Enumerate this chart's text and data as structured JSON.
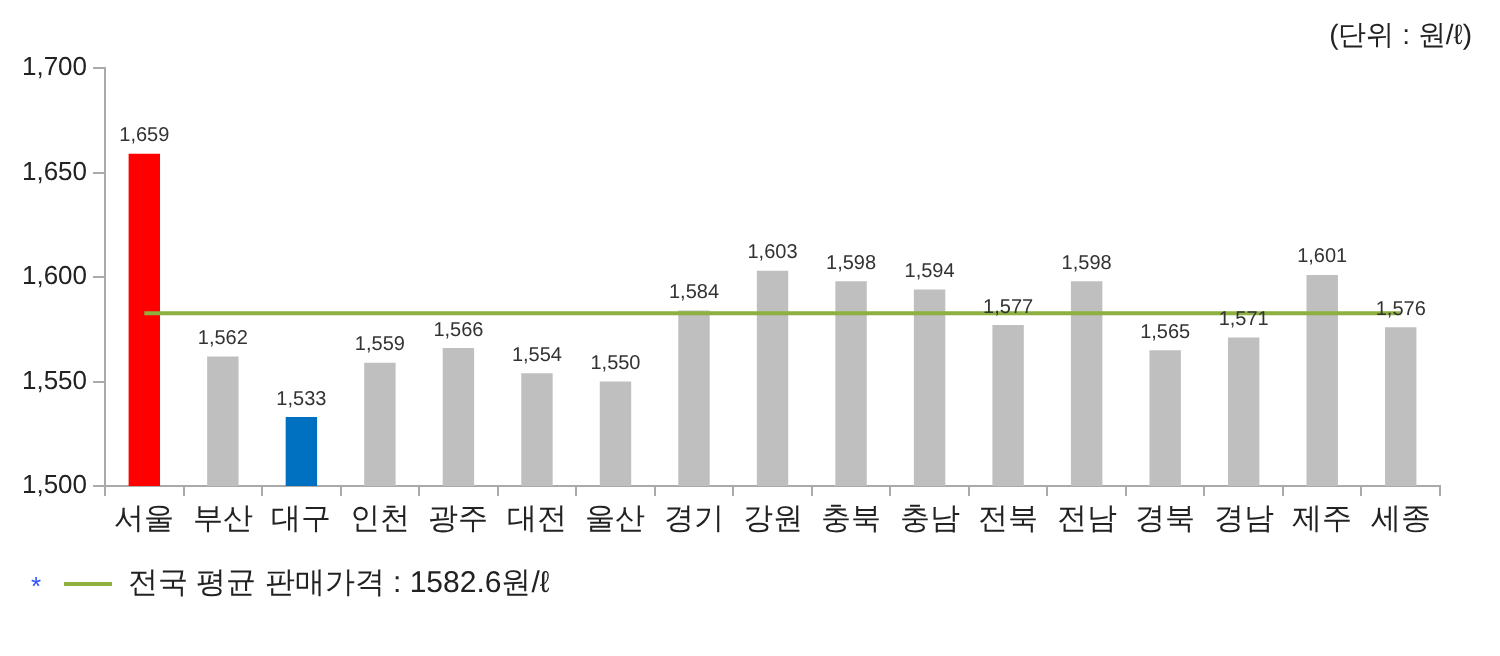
{
  "chart_data": {
    "type": "bar",
    "categories": [
      "서울",
      "부산",
      "대구",
      "인천",
      "광주",
      "대전",
      "울산",
      "경기",
      "강원",
      "충북",
      "충남",
      "전북",
      "전남",
      "경북",
      "경남",
      "제주",
      "세종"
    ],
    "values": [
      1659,
      1562,
      1533,
      1559,
      1566,
      1554,
      1550,
      1584,
      1603,
      1598,
      1594,
      1577,
      1598,
      1565,
      1571,
      1601,
      1576
    ],
    "value_labels": [
      "1,659",
      "1,562",
      "1,533",
      "1,559",
      "1,566",
      "1,554",
      "1,550",
      "1,584",
      "1,603",
      "1,598",
      "1,594",
      "1,577",
      "1,598",
      "1,565",
      "1,571",
      "1,601",
      "1,576"
    ],
    "colors": [
      "#ff0000",
      "#bfbfbf",
      "#0070c0",
      "#bfbfbf",
      "#bfbfbf",
      "#bfbfbf",
      "#bfbfbf",
      "#bfbfbf",
      "#bfbfbf",
      "#bfbfbf",
      "#bfbfbf",
      "#bfbfbf",
      "#bfbfbf",
      "#bfbfbf",
      "#bfbfbf",
      "#bfbfbf",
      "#bfbfbf"
    ],
    "ylim": [
      1500,
      1700
    ],
    "yticks": [
      {
        "value": 1500,
        "label": "1,500"
      },
      {
        "value": 1550,
        "label": "1,550"
      },
      {
        "value": 1600,
        "label": "1,600"
      },
      {
        "value": 1650,
        "label": "1,650"
      },
      {
        "value": 1700,
        "label": "1,700"
      }
    ],
    "grid": false,
    "ref_lines": [
      {
        "axis": "y",
        "value": 1582.6,
        "label": "전국 평균 판매가격 : 1582.6원/ℓ",
        "color": "#8db040"
      }
    ],
    "annotations": [
      "(단위 : 원/ℓ)",
      "*"
    ]
  }
}
